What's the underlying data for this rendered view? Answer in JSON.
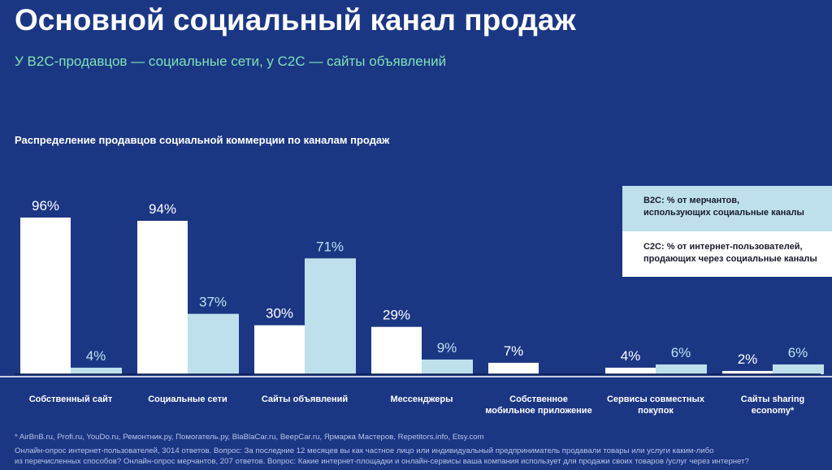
{
  "header": {
    "title": "Основной социальный канал продаж",
    "subtitle": "У B2C-продавцов — социальные сети, у C2C — сайты объявлений"
  },
  "colors": {
    "background": "#1b3784",
    "c2c": "#ffffff",
    "b2c": "#bde0ec",
    "subtitle": "#7fe3b5"
  },
  "chart_data": {
    "type": "bar",
    "title": "Распределение продавцов социальной коммерции по каналам продаж",
    "categories": [
      "Собственный сайт",
      "Социальные сети",
      "Сайты объявлений",
      "Мессенджеры",
      "Собственное мобильное приложение",
      "Сервисы совместных покупок",
      "Сайты sharing economy*"
    ],
    "series": [
      {
        "name": "C2C: % от интернет-пользователей, продающих через социальные каналы",
        "color": "#ffffff",
        "values": [
          96,
          94,
          30,
          29,
          7,
          4,
          2
        ],
        "labels": [
          "96%",
          "94%",
          "30%",
          "29%",
          "7%",
          "4%",
          "2%"
        ]
      },
      {
        "name": "B2C: % от мерчантов, использующих социальные каналы",
        "color": "#bde0ec",
        "values": [
          4,
          37,
          71,
          9,
          null,
          6,
          6
        ],
        "labels": [
          "4%",
          "37%",
          "71%",
          "9%",
          "",
          "6%",
          "6%"
        ]
      }
    ],
    "ylim": [
      0,
      100
    ],
    "grid": false,
    "legend_placement": "top-right"
  },
  "legend": {
    "b2c": [
      "B2C: % от мерчантов,",
      "использующих социальные каналы"
    ],
    "c2c": [
      "C2C: % от интернет-пользователей,",
      "продающих через социальные каналы"
    ]
  },
  "footer": {
    "note": "* AirBnB.ru, Profi.ru, YouDo.ru, Ремонтник.ру, Помогатель.ру, BlaBlaCar.ru, BeepCar.ru, Ярмарка Мастеров,  Repetitors.info, Etsy.com",
    "source1": "Онлайн-опрос интернет-пользователей, 3014 ответов. Вопрос: За последние 12 месяцев вы как частное лицо или индивидуальный предприниматель продавали товары или услуги каким-либо",
    "source2": "из перечисленных способов? Онлайн-опрос мерчантов,  207 ответов. Вопрос: Какие интернет-площадки и онлайн-сервисы ваша компания использует для продажи своих товаров /услуг через интернет?"
  }
}
